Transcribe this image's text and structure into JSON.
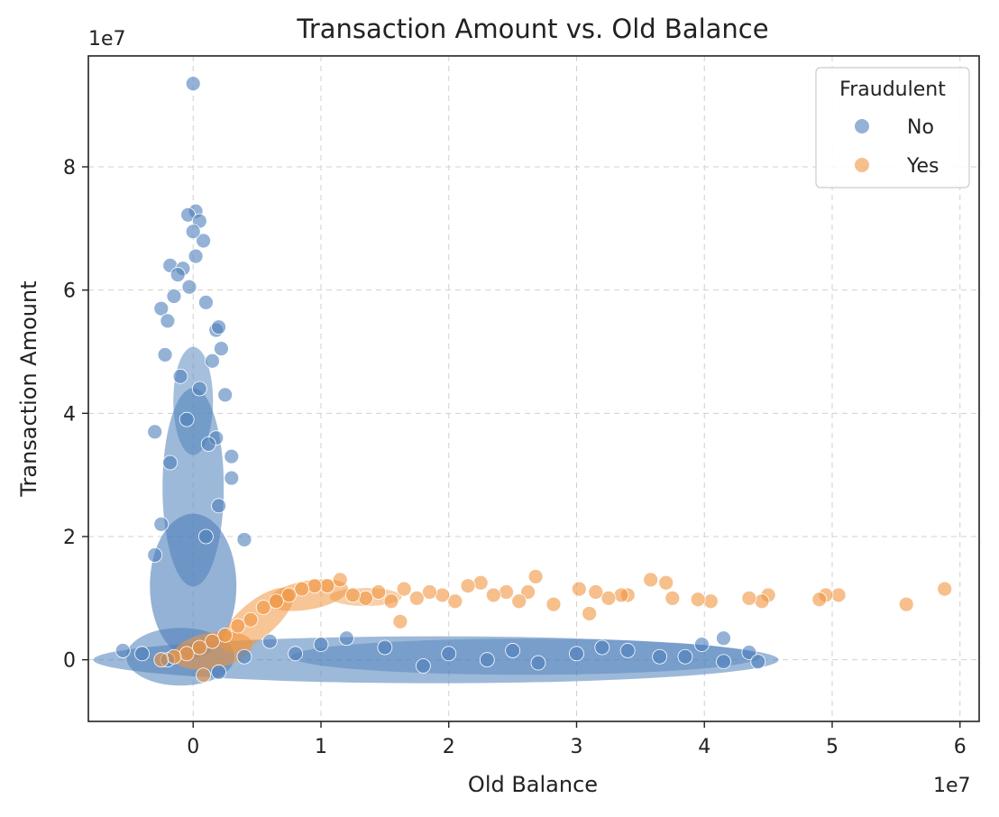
{
  "chart_data": {
    "type": "scatter",
    "title": "Transaction Amount vs. Old Balance",
    "xlabel": "Old Balance",
    "ylabel": "Transaction Amount",
    "x_offset_label": "1e7",
    "y_offset_label": "1e7",
    "xlim": [
      -0.82,
      6.15
    ],
    "ylim": [
      -1.0,
      9.8
    ],
    "xticks": [
      0,
      1,
      2,
      3,
      4,
      5,
      6
    ],
    "yticks": [
      0,
      2,
      4,
      6,
      8
    ],
    "grid": true,
    "legend": {
      "title": "Fraudulent",
      "placement": "top-right"
    },
    "series": [
      {
        "name": "No",
        "color": "#4c7fba",
        "points": [
          [
            0.0,
            9.35
          ],
          [
            0.02,
            7.28
          ],
          [
            -0.04,
            7.22
          ],
          [
            0.05,
            7.12
          ],
          [
            0.08,
            6.8
          ],
          [
            0.0,
            6.95
          ],
          [
            0.02,
            6.55
          ],
          [
            -0.18,
            6.4
          ],
          [
            -0.08,
            6.35
          ],
          [
            -0.12,
            6.25
          ],
          [
            -0.03,
            6.05
          ],
          [
            0.1,
            5.8
          ],
          [
            -0.15,
            5.9
          ],
          [
            -0.25,
            5.7
          ],
          [
            -0.2,
            5.5
          ],
          [
            0.18,
            5.35
          ],
          [
            0.2,
            5.4
          ],
          [
            0.22,
            5.05
          ],
          [
            -0.22,
            4.95
          ],
          [
            0.15,
            4.85
          ],
          [
            0.3,
            3.3
          ],
          [
            0.18,
            3.6
          ],
          [
            -0.3,
            3.7
          ],
          [
            0.3,
            2.95
          ],
          [
            0.4,
            1.95
          ],
          [
            -0.3,
            1.7
          ],
          [
            0.25,
            4.3
          ],
          [
            -0.1,
            4.6
          ],
          [
            0.05,
            4.4
          ],
          [
            -0.05,
            3.9
          ],
          [
            0.12,
            3.5
          ],
          [
            -0.18,
            3.2
          ],
          [
            0.2,
            2.5
          ],
          [
            -0.25,
            2.2
          ],
          [
            0.1,
            2.0
          ],
          [
            3.98,
            0.25
          ],
          [
            4.15,
            0.35
          ],
          [
            4.15,
            -0.03
          ],
          [
            4.35,
            0.12
          ],
          [
            4.42,
            -0.03
          ],
          [
            3.85,
            0.05
          ],
          [
            3.65,
            0.05
          ],
          [
            3.4,
            0.15
          ],
          [
            3.2,
            0.2
          ],
          [
            3.0,
            0.1
          ],
          [
            2.7,
            -0.05
          ],
          [
            2.5,
            0.15
          ],
          [
            2.3,
            0.0
          ],
          [
            2.0,
            0.1
          ],
          [
            1.8,
            -0.1
          ],
          [
            1.5,
            0.2
          ],
          [
            1.2,
            0.35
          ],
          [
            1.0,
            0.25
          ],
          [
            0.8,
            0.1
          ],
          [
            0.6,
            0.3
          ],
          [
            0.4,
            0.05
          ],
          [
            0.2,
            -0.2
          ],
          [
            -0.2,
            0.0
          ],
          [
            -0.4,
            0.1
          ],
          [
            -0.55,
            0.15
          ]
        ]
      },
      {
        "name": "Yes",
        "color": "#f0953f",
        "points": [
          [
            5.88,
            1.15
          ],
          [
            5.58,
            0.9
          ],
          [
            5.05,
            1.05
          ],
          [
            4.95,
            1.05
          ],
          [
            4.9,
            0.98
          ],
          [
            4.5,
            1.05
          ],
          [
            4.45,
            0.95
          ],
          [
            4.35,
            1.0
          ],
          [
            4.05,
            0.95
          ],
          [
            3.95,
            0.98
          ],
          [
            3.75,
            1.0
          ],
          [
            3.7,
            1.25
          ],
          [
            3.58,
            1.3
          ],
          [
            3.4,
            1.05
          ],
          [
            3.35,
            1.05
          ],
          [
            3.25,
            1.0
          ],
          [
            3.15,
            1.1
          ],
          [
            3.1,
            0.75
          ],
          [
            3.02,
            1.15
          ],
          [
            2.82,
            0.9
          ],
          [
            2.68,
            1.35
          ],
          [
            2.62,
            1.1
          ],
          [
            2.55,
            0.95
          ],
          [
            2.45,
            1.1
          ],
          [
            2.35,
            1.05
          ],
          [
            2.25,
            1.25
          ],
          [
            2.15,
            1.2
          ],
          [
            2.05,
            0.95
          ],
          [
            1.95,
            1.05
          ],
          [
            1.85,
            1.1
          ],
          [
            1.75,
            1.0
          ],
          [
            1.65,
            1.15
          ],
          [
            1.55,
            0.95
          ],
          [
            1.45,
            1.1
          ],
          [
            1.35,
            1.0
          ],
          [
            1.25,
            1.05
          ],
          [
            1.15,
            1.3
          ],
          [
            1.05,
            1.2
          ],
          [
            0.95,
            1.2
          ],
          [
            0.85,
            1.15
          ],
          [
            0.75,
            1.05
          ],
          [
            0.65,
            0.95
          ],
          [
            0.55,
            0.85
          ],
          [
            0.45,
            0.65
          ],
          [
            0.35,
            0.55
          ],
          [
            0.25,
            0.4
          ],
          [
            0.15,
            0.3
          ],
          [
            0.05,
            0.2
          ],
          [
            -0.05,
            0.1
          ],
          [
            -0.15,
            0.05
          ],
          [
            -0.25,
            0.0
          ],
          [
            0.08,
            -0.25
          ],
          [
            1.62,
            0.62
          ]
        ]
      }
    ]
  }
}
